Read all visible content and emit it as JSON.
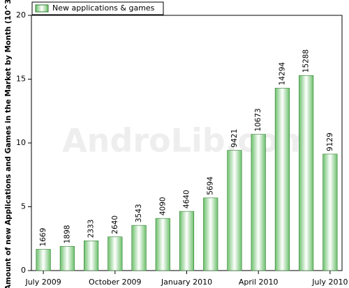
{
  "chart_data": {
    "type": "bar",
    "y_label": "Amount of new Applications and Games in the Market by Month (10^3)",
    "watermark": "AndroLib.com",
    "categories": [
      "July 2009",
      null,
      null,
      "October 2009",
      null,
      null,
      "January 2010",
      null,
      null,
      "April 2010",
      null,
      null,
      "July 2010"
    ],
    "series": [
      {
        "name": "New applications & games",
        "color": "#5fb85f",
        "values": [
          1.669,
          1.898,
          2.333,
          2.64,
          3.543,
          4.09,
          4.64,
          5.694,
          9.421,
          10.673,
          14.294,
          15.288,
          9.129
        ],
        "value_labels": [
          "1669",
          "1898",
          "2333",
          "2640",
          "3543",
          "4090",
          "4640",
          "5694",
          "9421",
          "10673",
          "14294",
          "15288",
          "9129"
        ]
      }
    ],
    "ylim": [
      0,
      20
    ],
    "yticks": [
      0,
      5,
      10,
      15,
      20
    ],
    "legend": "top-left"
  }
}
